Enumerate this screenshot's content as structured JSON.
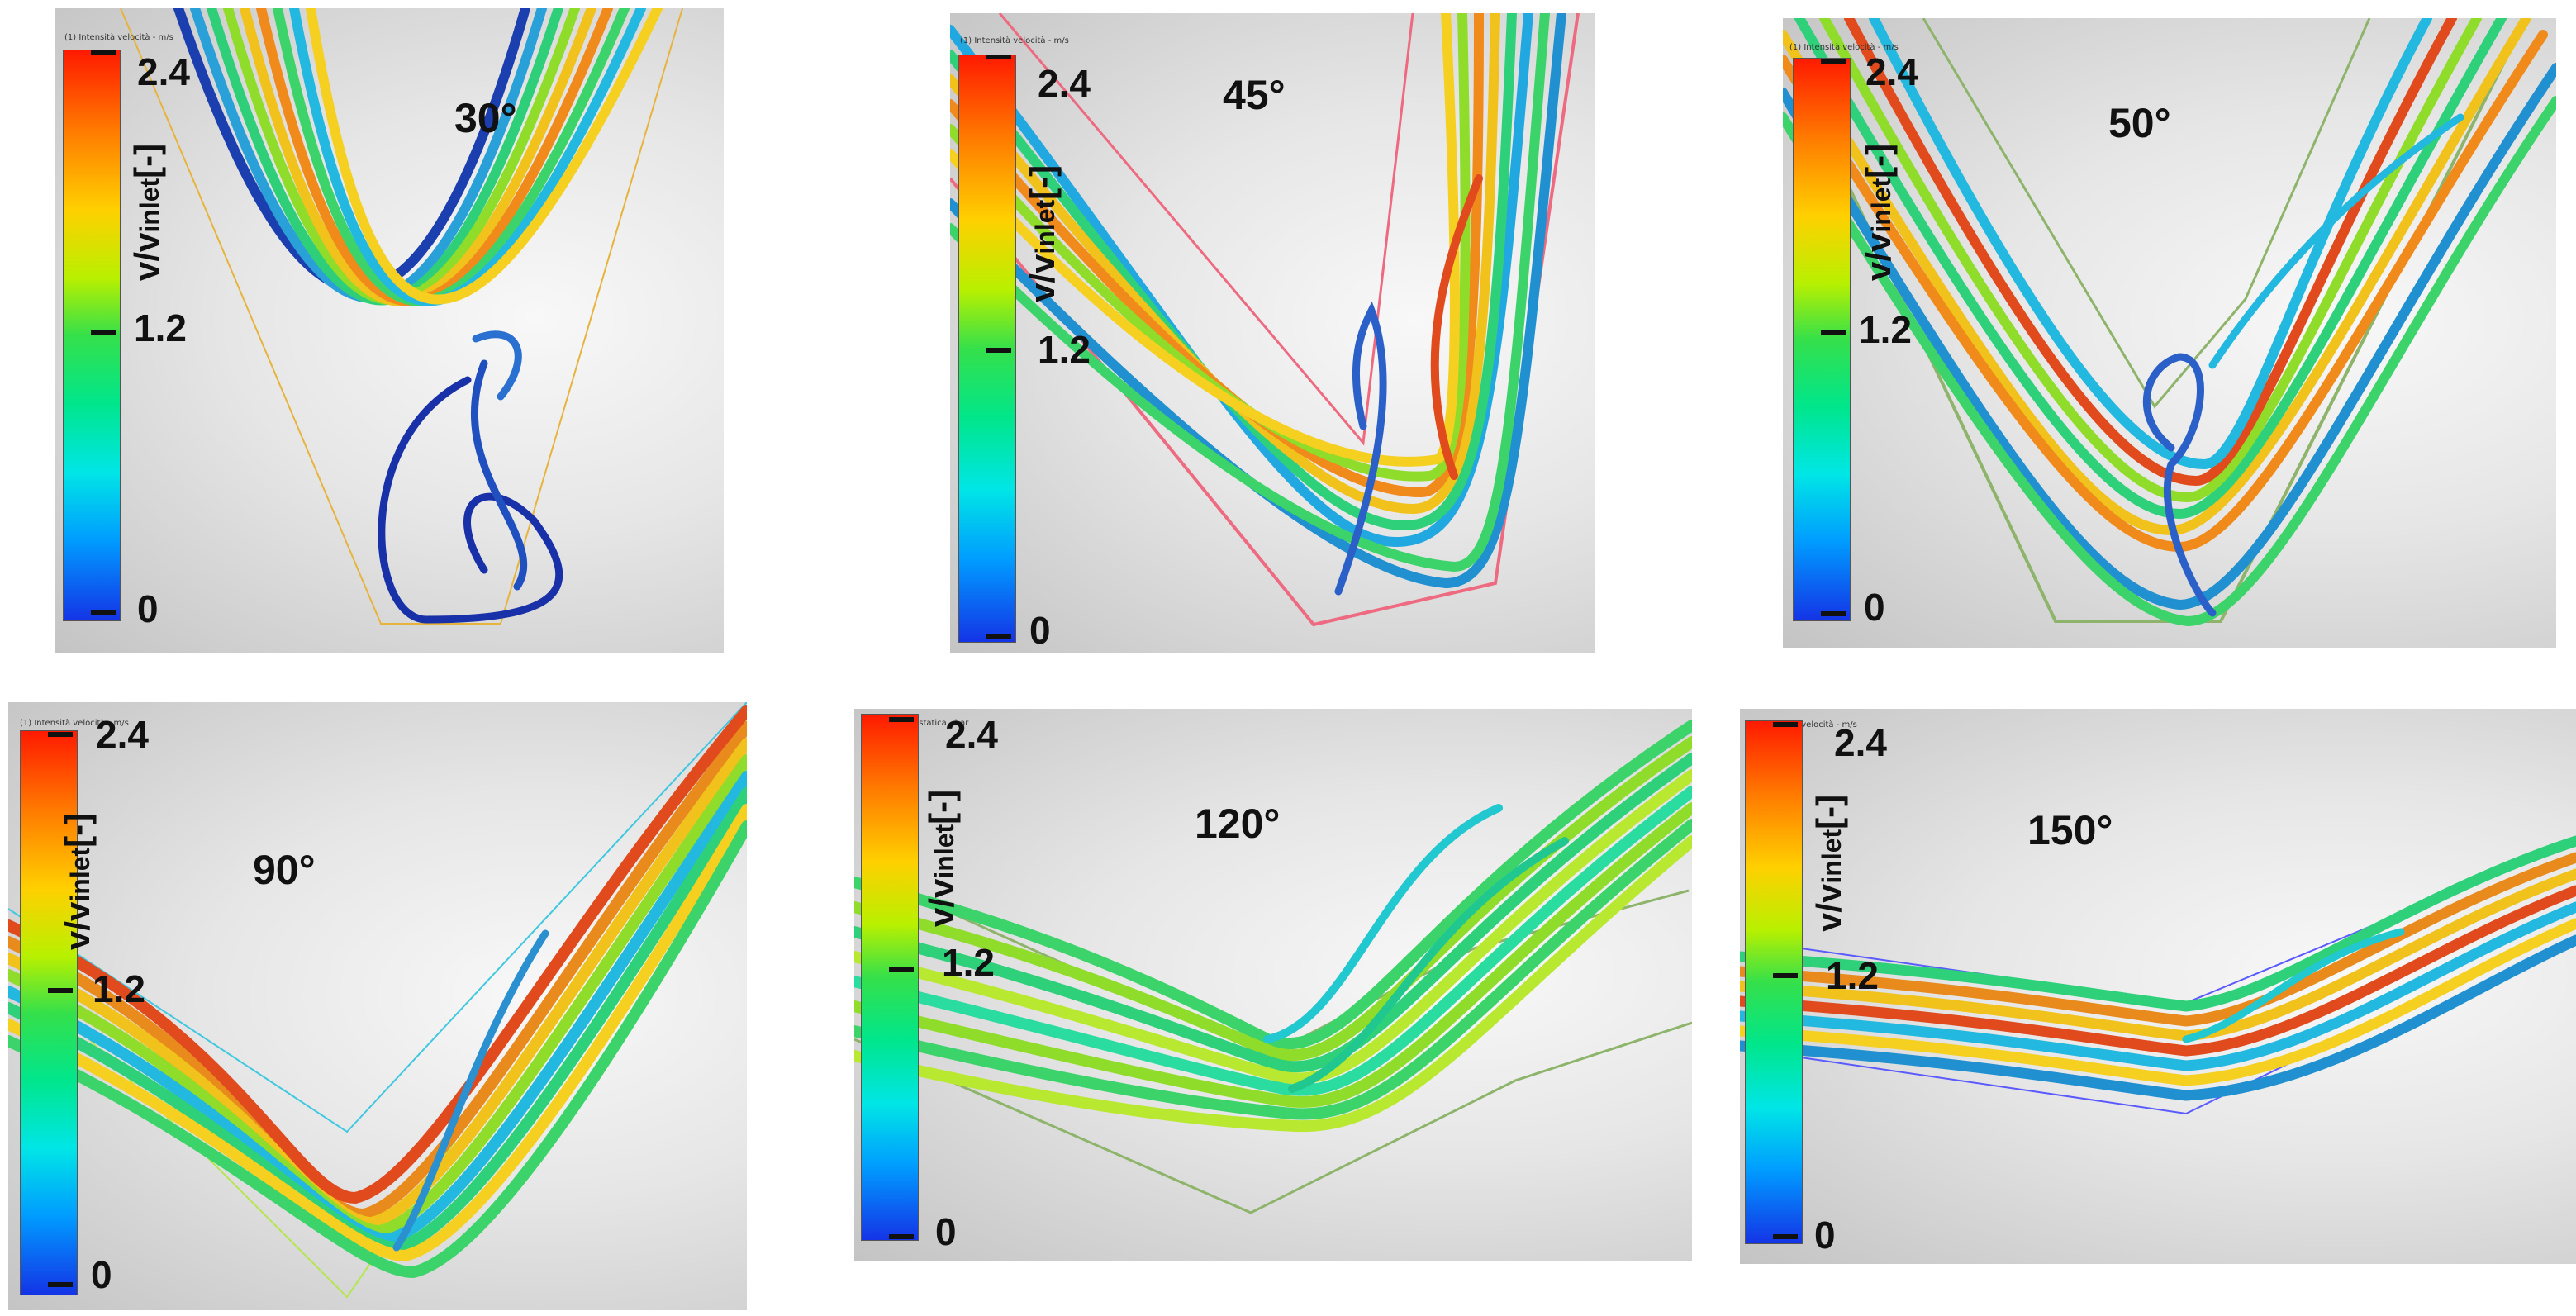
{
  "colorbar": {
    "label_main": "v/v",
    "label_sub": "inlet",
    "label_unit": "[-]",
    "max": "2.4",
    "mid": "1.2",
    "min": "0",
    "colors": [
      "#ff1a00",
      "#ff7a00",
      "#ffd000",
      "#35e04a",
      "#00e6e6",
      "#1434e6"
    ]
  },
  "panels": [
    {
      "angle": "30°",
      "caption": "(1) Intensità velocità - m/s"
    },
    {
      "angle": "45°",
      "caption": "(1) Intensità velocità - m/s"
    },
    {
      "angle": "50°",
      "caption": "(1) Intensità velocità - m/s"
    },
    {
      "angle": "90°",
      "caption": "(1) Intensità velocità - m/s"
    },
    {
      "angle": "120°",
      "caption": "(1) Pressione statica - bar"
    },
    {
      "angle": "150°",
      "caption": "(1) Intensità velocità - m/s"
    }
  ]
}
